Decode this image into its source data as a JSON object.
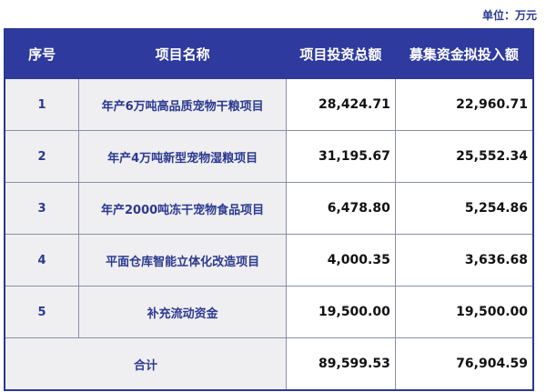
{
  "unit_label": "单位：万元",
  "headers": [
    "序号",
    "项目名称",
    "项目投资总额",
    "募集资金拟投入额"
  ],
  "rows": [
    {
      "no": "1",
      "name": "年产6万吨高品质宠物干粮项目",
      "total_investment": "28,424.71",
      "raised_funds": "22,960.71"
    },
    {
      "no": "2",
      "name": "年产4万吨新型宠物湿粮项目",
      "total_investment": "31,195.67",
      "raised_funds": "25,552.34"
    },
    {
      "no": "3",
      "name": "年产2000吨冻干宠物食品项目",
      "total_investment": "6,478.80",
      "raised_funds": "5,254.86"
    },
    {
      "no": "4",
      "name": "平面仓库智能立体化改造项目",
      "total_investment": "4,000.35",
      "raised_funds": "3,636.68"
    },
    {
      "no": "5",
      "name": "补充流动资金",
      "total_investment": "19,500.00",
      "raised_funds": "19,500.00"
    }
  ],
  "total": {
    "label": "合计",
    "total_investment": "89,599.53",
    "raised_funds": "76,904.59"
  },
  "colors": {
    "header_bg": "#2e3a9d",
    "text_blue": "#2b3990",
    "cell_gray": "#efeff1"
  }
}
